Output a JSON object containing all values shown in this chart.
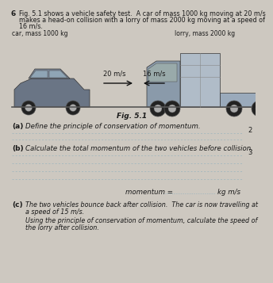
{
  "background_color": "#cdc8c0",
  "question_num": "6",
  "intro_line1": "Fig. 5.1 shows a vehicle safety test.  A car of mass 1000 kg moving at 20 m/s",
  "intro_line2": "makes a head-on collision with a lorry of mass 2000 kg moving at a speed of",
  "intro_line3": "16 m/s.",
  "car_label": "car, mass 1000 kg",
  "lorry_label": "lorry, mass 2000 kg",
  "car_speed": "20 m/s",
  "lorry_speed": "16 m/s",
  "fig_label": "Fig. 5.1",
  "part_a_label": "(a)",
  "part_a_text": "Define the principle of conservation of momentum.",
  "part_b_label": "(b)",
  "part_b_text": "Calculate the total momentum of the two vehicles before collision.",
  "momentum_label": "momentum =",
  "momentum_dots": "...................",
  "momentum_unit": "kg m/s",
  "part_c_label": "(c)",
  "part_c_line1": "The two vehicles bounce back after collision.  The car is now travelling at",
  "part_c_line2": "a speed of 15 m/s.",
  "part_c_line3": "Using the principle of conservation of momentum, calculate the speed of",
  "part_c_line4": "the lorry after collision.",
  "dotted_line_color": "#9ab4be",
  "text_color": "#1a1a1a",
  "label_color": "#1a1a1a",
  "ground_color": "#555555",
  "car_body_color": "#6a7585",
  "car_roof_color": "#7a8595",
  "car_window_color": "#8fa5b5",
  "lorry_cab_color": "#8a9aaa",
  "lorry_trailer_color": "#9aaabb",
  "lorry_box_color": "#b0bcc8",
  "wheel_color": "#222222",
  "wheel_rim_color": "#aaaaaa",
  "arrow_color": "#111111"
}
